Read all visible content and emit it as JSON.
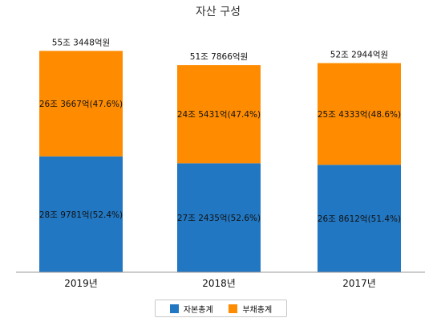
{
  "chart_data": {
    "type": "bar",
    "stacked": true,
    "title": "자산 구성",
    "categories": [
      "2019년",
      "2018년",
      "2017년"
    ],
    "totals": [
      "55조 3448억원",
      "51조 7866억원",
      "52조 2944억원"
    ],
    "total_values": [
      55.3448,
      51.7866,
      52.2944
    ],
    "series": [
      {
        "name": "자본총계",
        "color": "#2277c2",
        "values": [
          28.9781,
          27.2435,
          26.8612
        ],
        "labels": [
          "28조 9781억(52.4%)",
          "27조 2435억(52.6%)",
          "26조 8612억(51.4%)"
        ]
      },
      {
        "name": "부채총계",
        "color": "#ff8c00",
        "values": [
          26.3667,
          24.5431,
          25.4333
        ],
        "labels": [
          "26조 3667억(47.6%)",
          "24조 5431억(47.4%)",
          "25조 4333억(48.6%)"
        ]
      }
    ],
    "legend_position": "bottom",
    "grid": false
  }
}
